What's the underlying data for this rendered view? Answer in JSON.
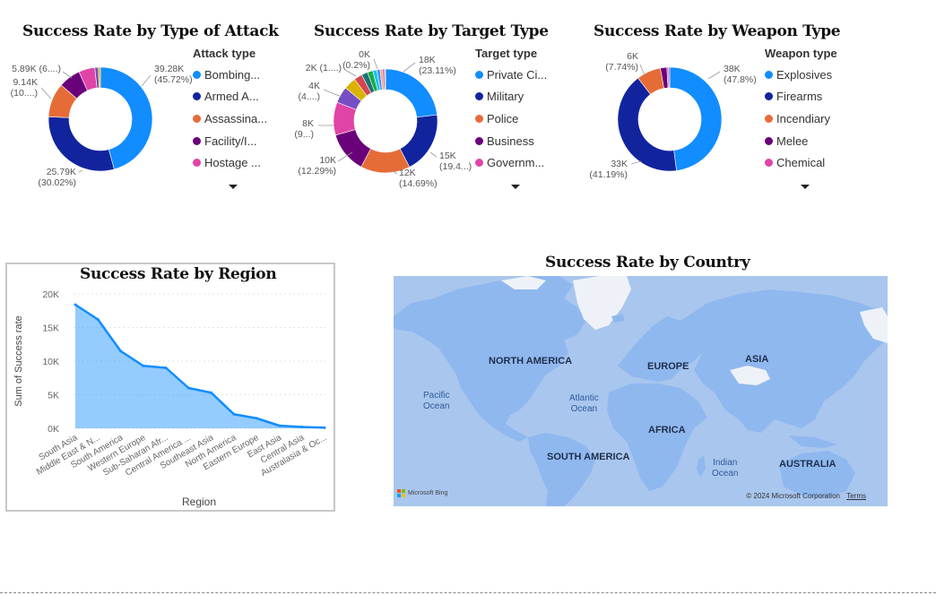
{
  "chart_data": [
    {
      "type": "pie",
      "donut": true,
      "title": "Success Rate by Type of Attack",
      "legend_title": "Attack type",
      "legend": [
        "Bombing...",
        "Armed A...",
        "Assassina...",
        "Facility/I...",
        "Hostage ..."
      ],
      "slices": [
        {
          "category": "Bombing...",
          "value": 39280,
          "color": "#118DFF"
        },
        {
          "category": "Armed A...",
          "value": 25790,
          "color": "#12239E"
        },
        {
          "category": "Assassina...",
          "value": 9140,
          "color": "#E66C37"
        },
        {
          "category": "Facility/I...",
          "value": 5890,
          "color": "#6B007B"
        },
        {
          "category": "Hostage ...",
          "value": 4300,
          "color": "#E044A7"
        },
        {
          "category": "",
          "value": 950,
          "color": "#744EC2"
        },
        {
          "category": "",
          "value": 550,
          "color": "#D9B300"
        }
      ],
      "data_labels": [
        {
          "lines": [
            "39.28K",
            "(45.72%)"
          ]
        },
        {
          "lines": [
            "25.79K",
            "(30.02%)"
          ]
        },
        {
          "lines": [
            "9.14K",
            "(10....)"
          ]
        },
        {
          "lines": [
            "5.89K (6....)"
          ]
        }
      ]
    },
    {
      "type": "pie",
      "donut": true,
      "title": "Success Rate by Target Type",
      "legend_title": "Target type",
      "legend": [
        "Private Ci...",
        "Military",
        "Police",
        "Business",
        "Governm..."
      ],
      "slices": [
        {
          "category": "Private Ci...",
          "value": 18000,
          "color": "#118DFF"
        },
        {
          "category": "Military",
          "value": 15000,
          "color": "#12239E"
        },
        {
          "category": "Police",
          "value": 12000,
          "color": "#E66C37"
        },
        {
          "category": "Business",
          "value": 10000,
          "color": "#6B007B"
        },
        {
          "category": "Governm...",
          "value": 8000,
          "color": "#E044A7"
        },
        {
          "category": "",
          "value": 4000,
          "color": "#744EC2"
        },
        {
          "category": "",
          "value": 3000,
          "color": "#D9B300"
        },
        {
          "category": "",
          "value": 2000,
          "color": "#D64550"
        },
        {
          "category": "",
          "value": 1500,
          "color": "#197278"
        },
        {
          "category": "",
          "value": 1300,
          "color": "#1AAB40"
        },
        {
          "category": "",
          "value": 1000,
          "color": "#15C6F4"
        },
        {
          "category": "",
          "value": 800,
          "color": "#4092FF"
        },
        {
          "category": "",
          "value": 600,
          "color": "#FFA058"
        },
        {
          "category": "",
          "value": 500,
          "color": "#BE5DC9"
        },
        {
          "category": "",
          "value": 200,
          "color": "#F472D0"
        }
      ],
      "data_labels": [
        {
          "lines": [
            "18K",
            "(23.11%)"
          ]
        },
        {
          "lines": [
            "15K",
            "(19.4...)"
          ]
        },
        {
          "lines": [
            "12K",
            "(14.69%)"
          ]
        },
        {
          "lines": [
            "10K",
            "(12.29%)"
          ]
        },
        {
          "lines": [
            "8K",
            "(9...)"
          ]
        },
        {
          "lines": [
            "4K",
            "(4....)"
          ]
        },
        {
          "lines": [
            "2K (1....)"
          ]
        },
        {
          "lines": [
            "0K",
            "(0.2%)"
          ]
        }
      ]
    },
    {
      "type": "pie",
      "donut": true,
      "title": "Success Rate by Weapon Type",
      "legend_title": "Weapon type",
      "legend": [
        "Explosives",
        "Firearms",
        "Incendiary",
        "Melee",
        "Chemical"
      ],
      "slices": [
        {
          "category": "Explosives",
          "value": 38000,
          "color": "#118DFF"
        },
        {
          "category": "Firearms",
          "value": 33000,
          "color": "#12239E"
        },
        {
          "category": "Incendiary",
          "value": 6000,
          "color": "#E66C37"
        },
        {
          "category": "Melee",
          "value": 1600,
          "color": "#6B007B"
        },
        {
          "category": "Chemical",
          "value": 400,
          "color": "#E044A7"
        },
        {
          "category": "",
          "value": 300,
          "color": "#744EC2"
        }
      ],
      "data_labels": [
        {
          "lines": [
            "38K",
            "(47.8%)"
          ]
        },
        {
          "lines": [
            "33K",
            "(41.19%)"
          ]
        },
        {
          "lines": [
            "6K",
            "(7.74%)"
          ]
        }
      ]
    },
    {
      "type": "area",
      "title": "Success Rate by Region",
      "xlabel": "Region",
      "ylabel": "Sum of Success rate",
      "ylim": [
        0,
        20000
      ],
      "yticks": [
        "0K",
        "5K",
        "10K",
        "15K",
        "20K"
      ],
      "grid": true,
      "color": "#118DFF",
      "categories": [
        "South Asia",
        "Middle East & N...",
        "South America",
        "Western Europe",
        "Sub-Saharan Afr...",
        "Central America ...",
        "Southeast Asia",
        "North America",
        "Eastern Europe",
        "East Asia",
        "Central Asia",
        "Australasia & Oc..."
      ],
      "values": [
        18400,
        16200,
        11500,
        9300,
        9000,
        6000,
        5300,
        2100,
        1500,
        400,
        200,
        100
      ]
    }
  ],
  "map": {
    "title": "Success Rate by Country",
    "labels": {
      "north_america": "NORTH AMERICA",
      "south_america": "SOUTH AMERICA",
      "europe": "EUROPE",
      "asia": "ASIA",
      "africa": "AFRICA",
      "australia": "AUSTRALIA",
      "pacific": "Pacific\nOcean",
      "atlantic": "Atlantic\nOcean",
      "indian": "Indian\nOcean"
    },
    "attribution": "Microsoft Bing",
    "copyright": "© 2024 Microsoft Corporation",
    "terms": "Terms",
    "water_color": "#A9C6EE",
    "land_color": "#8FB8EF"
  }
}
